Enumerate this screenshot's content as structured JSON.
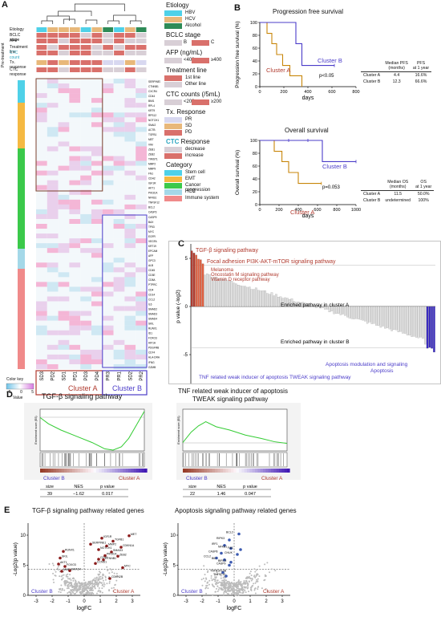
{
  "colors": {
    "hbv": "#4fd1e8",
    "hcv": "#e8b87a",
    "alcohol": "#2e8b57",
    "bclc_b": "#d8cfd6",
    "bclc_c": "#d9706b",
    "afp_low": "#d8cfd6",
    "afp_high": "#d9706b",
    "line1": "#d9706b",
    "line_other": "#d8cfd6",
    "ctc_low": "#d8cfd6",
    "ctc_high": "#d9706b",
    "pr": "#d8d8f0",
    "sd": "#e8b87a",
    "pd": "#d9706b",
    "decrease": "#d8cfd6",
    "increase": "#d9706b",
    "stem": "#4fd1e8",
    "emt": "#f5b942",
    "cancer": "#3bc94a",
    "hcc": "#a4d8e8",
    "immune": "#f08a8a",
    "clusterA": "#b03a2e",
    "clusterB": "#4b3cc9",
    "green": "#33cc33"
  },
  "panelA": {
    "label": "A",
    "pretreatment": "Pre-treatment",
    "row_labels": [
      "Etiology",
      "BCLC stage",
      "AFP",
      "Treatment line",
      "CTC count",
      "Tx. response",
      "CTC response"
    ],
    "samples": [
      "SD3",
      "PD2",
      "SD1",
      "PD1",
      "PD3",
      "PD4",
      "PR3",
      "PR1",
      "SD2",
      "PR2"
    ],
    "clusterA": "Cluster A",
    "clusterB": "Cluster B",
    "color_key": "Color key",
    "value": "Value",
    "ck_ticks": [
      "−5",
      "0",
      "5"
    ],
    "genes": [
      "SERPINE1",
      "CTNNB1",
      "CXCR4",
      "CD44",
      "BMI1",
      "RPL4",
      "KRT9",
      "RPS12",
      "NOTCH1",
      "SNAI2",
      "ACTB",
      "TGFB1",
      "MET",
      "VIM",
      "ZEB1",
      "ZEB2",
      "TWIST1",
      "MMP2",
      "MMP9",
      "FN1",
      "CDH2",
      "IGF1R",
      "AKT1",
      "PIK3CA",
      "NFKB1",
      "TNFSF12",
      "BCL2",
      "CASP3",
      "CASP9",
      "BAX",
      "TP53",
      "MYC",
      "EGFR",
      "VEGFA",
      "KRT19",
      "EPCAM",
      "AFP",
      "GPC3",
      "ALB",
      "CD45",
      "CD3E",
      "CD8A",
      "PTPRC",
      "CD4",
      "CD14",
      "CCL2",
      "IL6",
      "SMAD2",
      "SMAD3",
      "SMAD4",
      "SKIL",
      "RUNX1",
      "ID1",
      "FOXO3",
      "HIF1A",
      "PDGFRB",
      "CD74",
      "HLA-DRA",
      "IFNG",
      "GZMB"
    ]
  },
  "legend": {
    "etiology": {
      "title": "Etiology",
      "items": [
        "HBV",
        "HCV",
        "Alcohol"
      ]
    },
    "bclc": {
      "title": "BCLC stage",
      "items": [
        "B",
        "C"
      ]
    },
    "afp": {
      "title": "AFP (ng/mL)",
      "items": [
        "<400",
        "≥400"
      ]
    },
    "txline": {
      "title": "Treatment line",
      "items": [
        "1st line",
        "Other line"
      ]
    },
    "ctc": {
      "title": "CTC counts (/5mL)",
      "items": [
        "<200",
        "≥200"
      ]
    },
    "txresp": {
      "title": "Tx. Response",
      "items": [
        "PR",
        "SD",
        "PD"
      ]
    },
    "ctcresp": {
      "title_prefix": "CTC",
      "title_suffix": " Response",
      "items": [
        "decrease",
        "increase"
      ]
    },
    "category": {
      "title": "Category",
      "items": [
        "Stem cell",
        "EMT",
        "Cancer progression",
        "HCC",
        "Immune system"
      ]
    }
  },
  "panelB": {
    "label": "B",
    "pfs": {
      "title": "Progression free survival",
      "ylabel": "Progression free survival (%)",
      "xlabel": "days",
      "pval": "p<0.05",
      "clusterA": "Cluster A",
      "clusterB": "Cluster B",
      "yticks": [
        "0",
        "20",
        "40",
        "60",
        "80",
        "100"
      ],
      "xticks": [
        "0",
        "200",
        "400",
        "600",
        "800"
      ],
      "table": {
        "h1": "Median PFS",
        "h1b": "(months)",
        "h2": "PFS",
        "h2b": "at 1 year",
        "rows": [
          [
            "Cluster A",
            "4.4",
            "16.6%"
          ],
          [
            "Cluster B",
            "12.3",
            "66.6%"
          ]
        ]
      }
    },
    "os": {
      "title": "Overall survival",
      "ylabel": "Overall survival (%)",
      "xlabel": "days",
      "pval": "p=0.053",
      "clusterA": "Cluster A",
      "clusterB": "Cluster B",
      "yticks": [
        "0",
        "20",
        "40",
        "60",
        "80",
        "100"
      ],
      "xticks": [
        "0",
        "200",
        "400",
        "600",
        "800",
        "1000"
      ],
      "table": {
        "h1": "Median OS",
        "h1b": "(months)",
        "h2": "OS",
        "h2b": "at 1 year",
        "rows": [
          [
            "Cluster A",
            "11.5",
            "50.0%"
          ],
          [
            "Cluster B",
            "undetermined",
            "100%"
          ]
        ]
      }
    }
  },
  "panelC": {
    "label": "C",
    "ylabel": "p value (-log2)",
    "yticks": [
      "5",
      "0",
      "-5"
    ],
    "top_labels": [
      "TGF-β signaling pathway",
      "Focal adhesion PI3K-AKT-mTOR signaling pathway",
      "Melanoma",
      "Oncostatin M signaling pathway",
      "Vitamin D receptor pathway"
    ],
    "enrichedA": "Enriched pathway in cluster A",
    "enrichedB": "Enriched pathway in cluster B",
    "bottom_labels": [
      "Apoptosis modulation and signaling",
      "Apoptosis",
      "TNF related weak inducer of apoptosis TWEAK signaling pathway"
    ]
  },
  "panelD": {
    "label": "D",
    "left": {
      "title": "TGF-β signaling pathway",
      "ylabel": "Enrichment score (ES)",
      "cl1": "Cluster B",
      "cl2": "Cluster A",
      "h": [
        "size",
        "NES",
        "p value"
      ],
      "v": [
        "39",
        "−1.62",
        "0.017"
      ]
    },
    "right": {
      "title1": "TNF related weak inducer of apoptosis",
      "title2": "TWEAK signaling  pathway",
      "ylabel": "Enrichment score (ES)",
      "cl1": "Cluster B",
      "cl2": "Cluster A",
      "h": [
        "size",
        "NES",
        "p value"
      ],
      "v": [
        "22",
        "1.46",
        "0.047"
      ]
    }
  },
  "panelE": {
    "label": "E",
    "left": {
      "title": "TGF-β signaling pathway related genes",
      "ylabel": "-Log2(p value)",
      "xlabel": "logFC",
      "cl1": "Cluster B",
      "cl2": "Cluster A",
      "xticks": [
        "-3",
        "-2",
        "-1",
        "0",
        "1",
        "2",
        "3"
      ],
      "yticks": [
        "0",
        "5",
        "10"
      ],
      "genes": [
        "RUNX1",
        "SKIL",
        "AKT1",
        "FOXO3",
        "MMP9",
        "SMAD4",
        "IGF1R",
        "SERPINE1",
        "TGFB1",
        "MMP2",
        "NOTCH1",
        "CDKN1A",
        "SMAD3",
        "PIK3CA",
        "CD44",
        "ZEB2",
        "CTNNB1",
        "MET",
        "CCND1",
        "MYC",
        "CDKN2B"
      ]
    },
    "right": {
      "title": "Apoptosis signaling pathway related genes",
      "ylabel": "-Log2(p value)",
      "xlabel": "logFC",
      "cl1": "Cluster B",
      "cl2": "Cluster A",
      "xticks": [
        "-3",
        "-2",
        "-1",
        "0",
        "1",
        "2",
        "3"
      ],
      "yticks": [
        "0",
        "5",
        "10"
      ],
      "genes": [
        "BCL2",
        "RIPK3",
        "IRF1",
        "NFKB1",
        "FAS",
        "CASP8",
        "CHUK",
        "CCL2",
        "BID",
        "BIRC5",
        "CASP9",
        "TNFRSF10B",
        "TNFSF10"
      ]
    }
  }
}
